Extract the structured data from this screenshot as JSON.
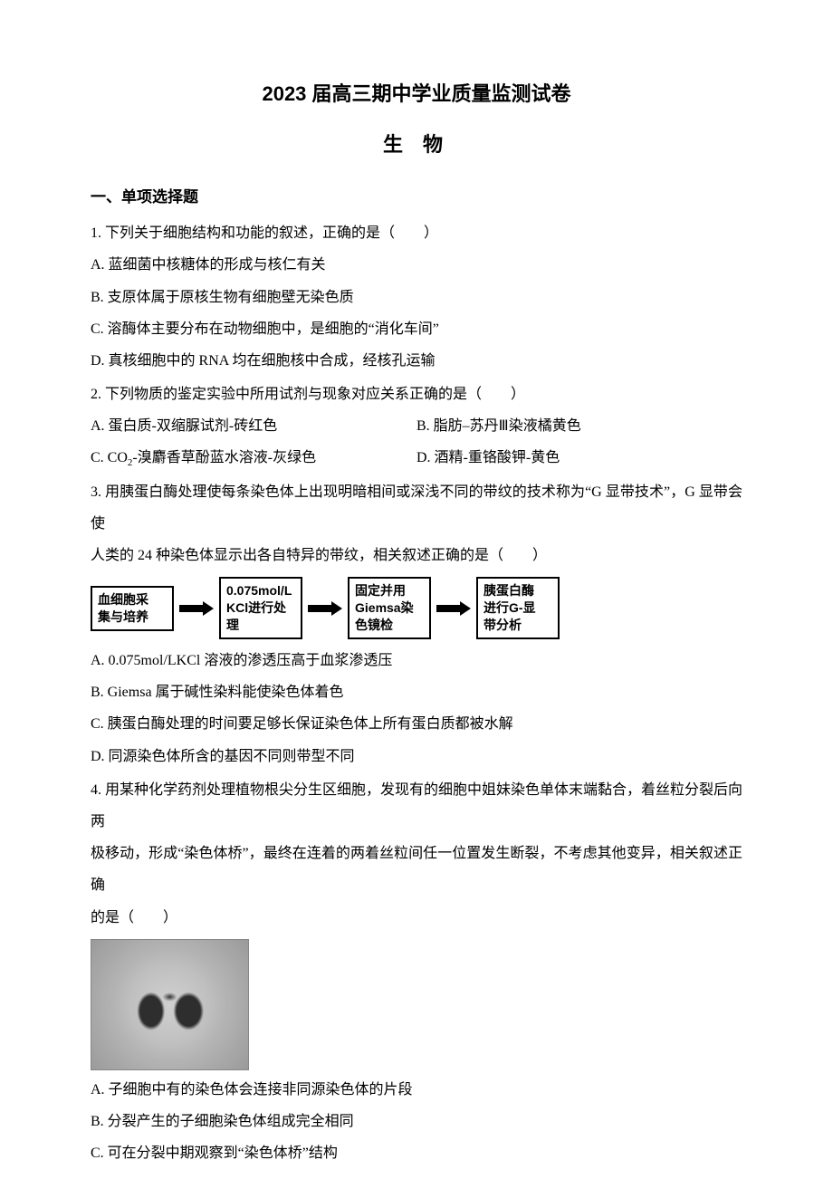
{
  "title": "2023 届高三期中学业质量监测试卷",
  "subtitle": "生 物",
  "sectionHeader": "一、单项选择题",
  "q1": {
    "stem": "1. 下列关于细胞结构和功能的叙述，正确的是（　　）",
    "A": "A. 蓝细菌中核糖体的形成与核仁有关",
    "B": "B. 支原体属于原核生物有细胞壁无染色质",
    "C": "C. 溶酶体主要分布在动物细胞中，是细胞的“消化车间”",
    "D": "D. 真核细胞中的 RNA 均在细胞核中合成，经核孔运输"
  },
  "q2": {
    "stem": "2. 下列物质的鉴定实验中所用试剂与现象对应关系正确的是（　　）",
    "A": "A. 蛋白质-双缩脲试剂-砖红色",
    "B": "B. 脂肪–苏丹Ⅲ染液橘黄色",
    "C_pre": "C. CO",
    "C_sub": "2",
    "C_post": "-溴麝香草酚蓝水溶液-灰绿色",
    "D": "D. 酒精-重铬酸钾-黄色"
  },
  "q3": {
    "stem1": "3. 用胰蛋白酶处理使每条染色体上出现明暗相间或深浅不同的带纹的技术称为“G 显带技术”，G 显带会使",
    "stem2": "人类的 24 种染色体显示出各自特异的带纹，相关叙述正确的是（　　）",
    "flow": {
      "b1": "血细胞采\n集与培养",
      "b2": "0.075mol/L\nKCl进行处\n理",
      "b3": "固定并用\nGiemsa染\n色镜检",
      "b4": "胰蛋白酶\n进行G-显\n带分析"
    },
    "A": "A. 0.075mol/LKCl 溶液的渗透压高于血浆渗透压",
    "B": "B. Giemsa 属于碱性染料能使染色体着色",
    "C": "C. 胰蛋白酶处理的时间要足够长保证染色体上所有蛋白质都被水解",
    "D": "D. 同源染色体所含的基因不同则带型不同"
  },
  "q4": {
    "stem1": "4. 用某种化学药剂处理植物根尖分生区细胞，发现有的细胞中姐妹染色单体末端黏合，着丝粒分裂后向两",
    "stem2": "极移动，形成“染色体桥”，最终在连着的两着丝粒间任一位置发生断裂，不考虑其他变异，相关叙述正确",
    "stem3": "的是（　　）",
    "A": "A. 子细胞中有的染色体会连接非同源染色体的片段",
    "B": "B. 分裂产生的子细胞染色体组成完全相同",
    "C": "C. 可在分裂中期观察到“染色体桥”结构"
  }
}
